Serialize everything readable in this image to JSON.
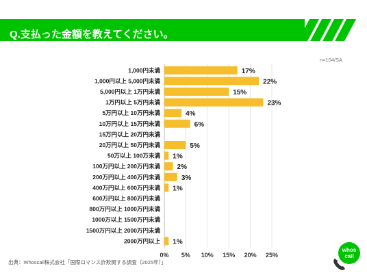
{
  "header": {
    "title": "Q.支払った金額を教えてください。"
  },
  "note": "n=104/SA",
  "footer": {
    "source": "出典：Whoscall株式会社「国際ロマンス詐欺関する調査（2025年）」"
  },
  "logo": {
    "line1": "whos",
    "line2": "call",
    "icon": "phone-icon"
  },
  "colors": {
    "accent": "#00c300",
    "bar": "#f6be2c"
  },
  "chart_data": {
    "type": "bar",
    "orientation": "horizontal",
    "categories": [
      "1,000円未満",
      "1,000円以上 5,000円未満",
      "5,000円以上 1万円未満",
      "1万円以上 5万円未満",
      "5万円以上 10万円未満",
      "10万円以上 15万円未満",
      "15万円以上 20万円未満",
      "20万円以上 50万円未満",
      "50万以上 100万未満",
      "100万円以上 200万円未満",
      "200万円以上 400万円未満",
      "400万円以上 600万円未満",
      "600万円以上 800万円未満",
      "800万円以上 1000万円未満",
      "1000万以上 1500万円未満",
      "1500万円以上 2000万円未満",
      "2000万円以上"
    ],
    "values": [
      17,
      22,
      15,
      23,
      4,
      6,
      0,
      5,
      1,
      2,
      3,
      1,
      0,
      0,
      0,
      0,
      1
    ],
    "data_labels": [
      "17%",
      "22%",
      "15%",
      "23%",
      "4%",
      "6%",
      "",
      "5%",
      "1%",
      "2%",
      "3%",
      "1%",
      "",
      "",
      "",
      "",
      "1%"
    ],
    "xticks": [
      "0%",
      "5%",
      "10%",
      "15%",
      "20%",
      "25%"
    ],
    "xtick_values": [
      0,
      5,
      10,
      15,
      20,
      25
    ],
    "xlim": [
      0,
      25
    ],
    "grid": true,
    "legend": "none"
  }
}
